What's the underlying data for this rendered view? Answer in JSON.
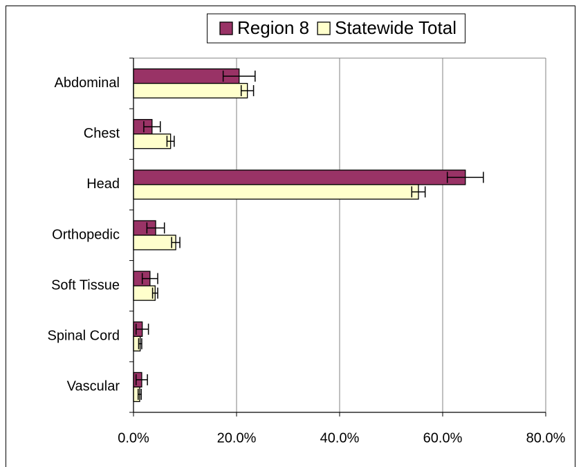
{
  "chart_data": {
    "type": "bar",
    "orientation": "horizontal",
    "categories": [
      "Abdominal",
      "Chest",
      "Head",
      "Orthopedic",
      "Soft Tissue",
      "Spinal Cord",
      "Vascular"
    ],
    "series": [
      {
        "name": "Region 8",
        "color": "#993366",
        "values": [
          20.5,
          3.6,
          64.4,
          4.3,
          3.2,
          1.7,
          1.6
        ],
        "errors": [
          3.1,
          1.6,
          3.5,
          1.7,
          1.5,
          1.2,
          1.1
        ]
      },
      {
        "name": "Statewide Total",
        "color": "#FFFFCC",
        "values": [
          22.1,
          7.2,
          55.3,
          8.2,
          4.2,
          1.3,
          1.2
        ],
        "errors": [
          1.2,
          0.7,
          1.3,
          0.8,
          0.5,
          0.3,
          0.3
        ]
      }
    ],
    "xlim": [
      0,
      80
    ],
    "xticks": [
      {
        "value": 0,
        "label": "0.0%"
      },
      {
        "value": 20,
        "label": "20.0%"
      },
      {
        "value": 40,
        "label": "40.0%"
      },
      {
        "value": 60,
        "label": "60.0%"
      },
      {
        "value": 80,
        "label": "80.0%"
      }
    ],
    "grid": true,
    "legend": "top"
  }
}
